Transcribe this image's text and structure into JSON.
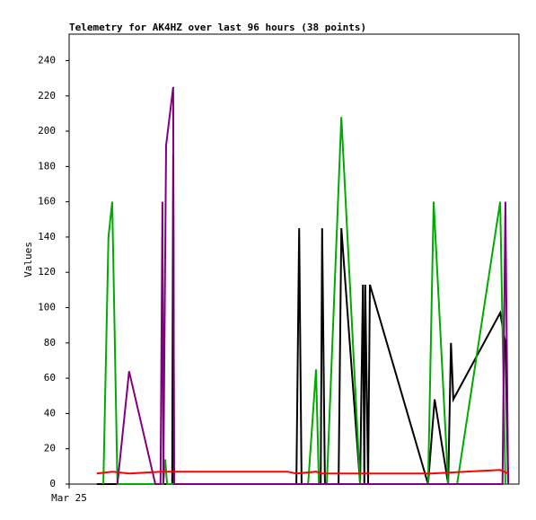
{
  "chart_data": {
    "type": "line",
    "title": "Telemetry for AK4HZ over last 96 hours (38 points)",
    "y_label": "Values",
    "xlim": [
      0,
      96
    ],
    "xticks": [
      {
        "value": 0,
        "label": "Mar 25"
      }
    ],
    "ylim": [
      0,
      255
    ],
    "yticks": [
      0,
      20,
      40,
      60,
      80,
      100,
      120,
      140,
      160,
      180,
      200,
      220,
      240
    ],
    "series": [
      {
        "name": "black",
        "color": "#000000",
        "x": [
          5.9,
          22.0,
          22.2,
          22.4,
          48.5,
          49.1,
          49.6,
          53.7,
          54.0,
          54.6,
          57.5,
          58.1,
          62.1,
          62.7,
          63.0,
          63.2,
          63.8,
          64.2,
          76.6,
          78.0,
          80.9,
          81.5,
          82.0,
          92.0,
          93.1,
          93.7
        ],
        "values": [
          0,
          0,
          187,
          0,
          0,
          145,
          0,
          0,
          145,
          0,
          0,
          145,
          0,
          113,
          0,
          113,
          0,
          113,
          0,
          48,
          0,
          80,
          48,
          97,
          80,
          0
        ]
      },
      {
        "name": "green",
        "color": "#00aa00",
        "x": [
          7.3,
          8.4,
          9.2,
          10.3,
          20.1,
          20.5,
          20.9,
          51.0,
          52.7,
          53.3,
          55.0,
          58.1,
          62.1,
          76.6,
          77.8,
          80.9,
          82.8,
          92.0,
          93.1
        ],
        "values": [
          0,
          140,
          160,
          0,
          0,
          14,
          0,
          0,
          65,
          0,
          0,
          208,
          0,
          0,
          160,
          0,
          0,
          160,
          0
        ]
      },
      {
        "name": "purple",
        "color": "#800080",
        "x": [
          10.3,
          12.8,
          18.4,
          19.5,
          19.9,
          20.1,
          20.7,
          22.2,
          22.4,
          92.5,
          93.1,
          93.7
        ],
        "values": [
          0,
          64,
          0,
          0,
          160,
          0,
          192,
          225,
          0,
          0,
          160,
          0
        ]
      },
      {
        "name": "red",
        "color": "#ff0000",
        "x": [
          5.9,
          9.2,
          12.8,
          19.7,
          46.6,
          48.5,
          52.7,
          54.0,
          77.2,
          92.0,
          93.7
        ],
        "values": [
          6,
          7,
          6,
          7,
          7,
          6,
          7,
          6,
          6,
          8,
          6
        ]
      }
    ]
  }
}
